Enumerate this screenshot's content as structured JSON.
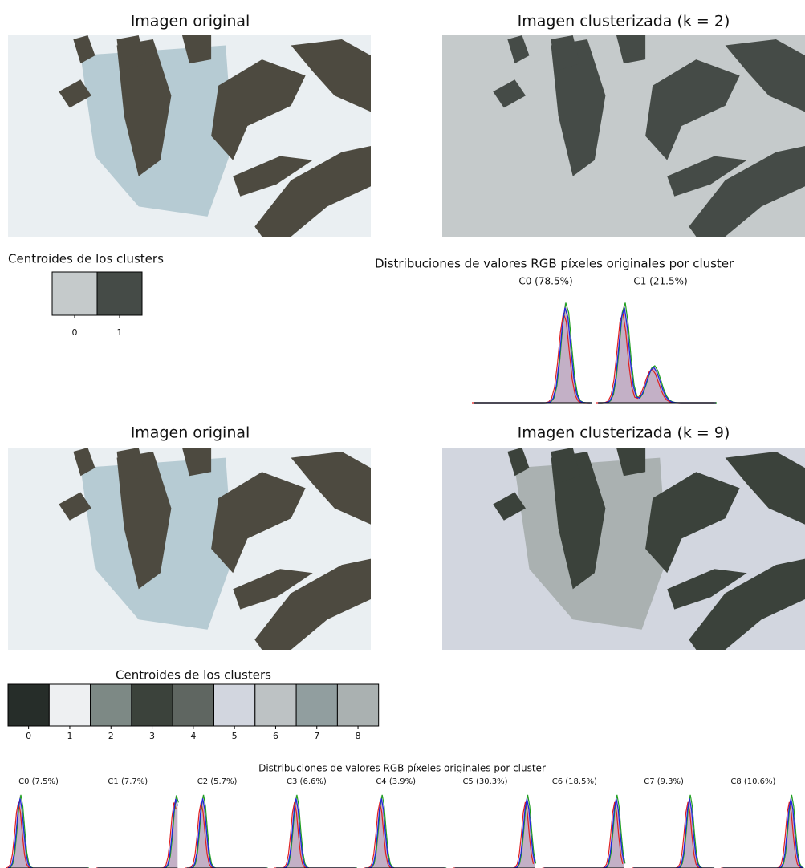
{
  "panels": [
    {
      "original_title": "Imagen original",
      "clustered_title": "Imagen clusterizada (k = 2)",
      "centroids_title": "Centroides de los clusters",
      "centroids": [
        {
          "label": "0",
          "color": "#c5cacb"
        },
        {
          "label": "1",
          "color": "#454b47"
        }
      ],
      "distributions_title": "Distribuciones de valores RGB píxeles originales por cluster",
      "clusters": [
        "C0 (78.5%)",
        "C1 (21.5%)"
      ]
    },
    {
      "original_title": "Imagen original",
      "clustered_title": "Imagen clusterizada (k = 9)",
      "centroids_title": "Centroides de los clusters",
      "centroids": [
        {
          "label": "0",
          "color": "#262d29"
        },
        {
          "label": "1",
          "color": "#eef0f2"
        },
        {
          "label": "2",
          "color": "#7d8985"
        },
        {
          "label": "3",
          "color": "#3b423b"
        },
        {
          "label": "4",
          "color": "#5f6661"
        },
        {
          "label": "5",
          "color": "#d2d6df"
        },
        {
          "label": "6",
          "color": "#bdc2c4"
        },
        {
          "label": "7",
          "color": "#919e9f"
        },
        {
          "label": "8",
          "color": "#aab1b1"
        }
      ],
      "distributions_title": "Distribuciones de valores RGB píxeles originales por cluster",
      "clusters": [
        "C0 (7.5%)",
        "C1 (7.7%)",
        "C2 (5.7%)",
        "C3 (6.6%)",
        "C4 (3.9%)",
        "C5 (30.3%)",
        "C6 (18.5%)",
        "C7 (9.3%)",
        "C8 (10.6%)"
      ]
    }
  ]
}
